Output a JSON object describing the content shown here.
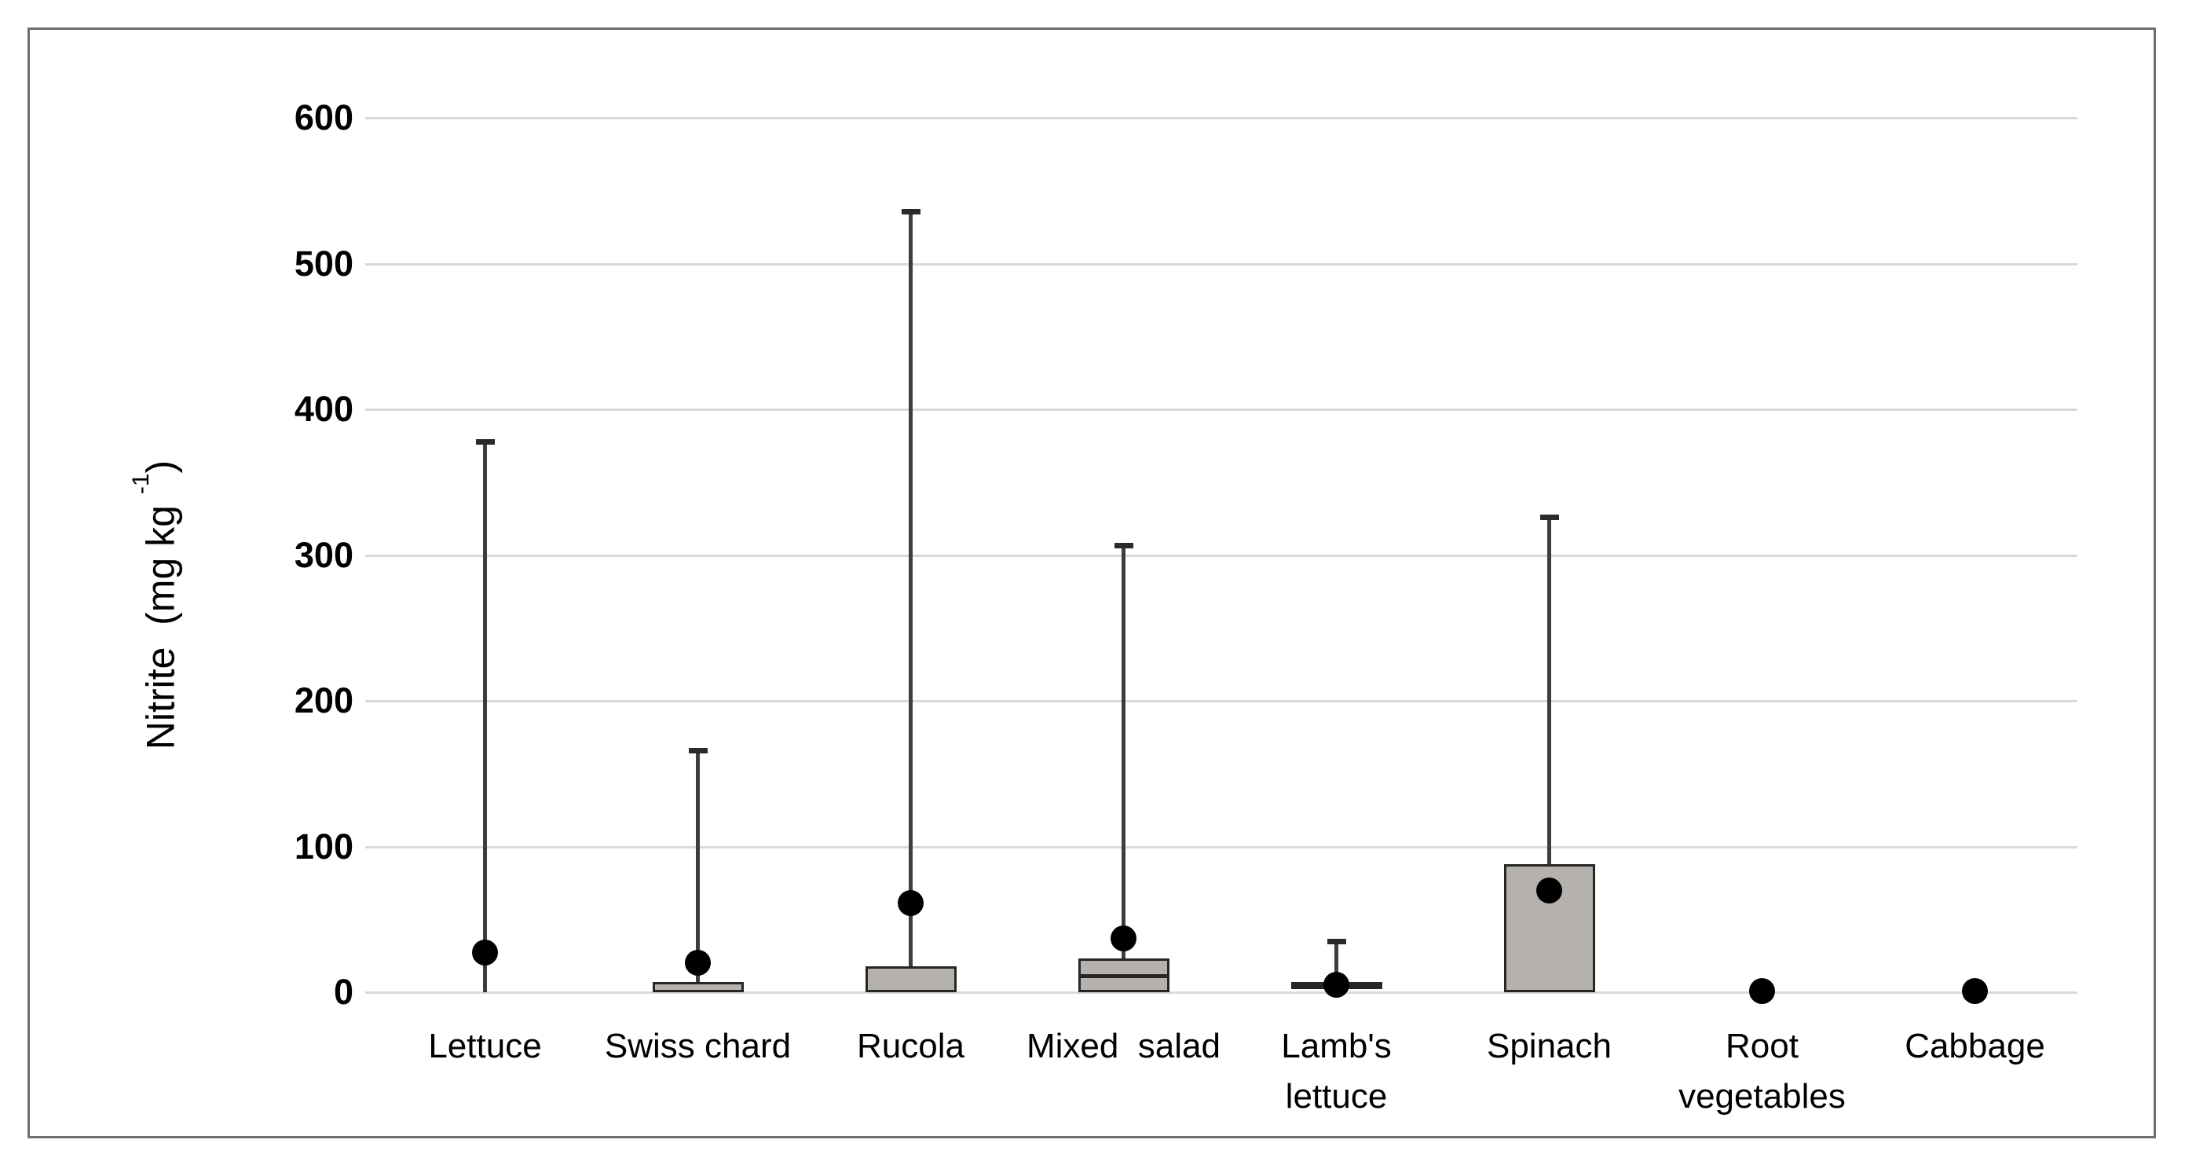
{
  "figure": {
    "y_axis_title": {
      "prefix": "Nitrite  (mg kg ",
      "superscript": "-1",
      "suffix": ")"
    }
  },
  "chart_data": {
    "type": "box",
    "title": "",
    "xlabel": "",
    "ylabel": "Nitrite (mg kg -1)",
    "legend": "none",
    "grid": "horizontal",
    "y_axis": {
      "min": 0,
      "max": 600,
      "tick_interval": 100,
      "tick_labels": [
        "0",
        "100",
        "200",
        "300",
        "400",
        "500",
        "600"
      ]
    },
    "categories": [
      [
        "Lettuce"
      ],
      [
        "Swiss chard"
      ],
      [
        "Rucola"
      ],
      [
        "Mixed  salad"
      ],
      [
        "Lamb's",
        "lettuce"
      ],
      [
        "Spinach"
      ],
      [
        "Root",
        "vegetables"
      ],
      [
        "Cabbage"
      ]
    ],
    "series": [
      {
        "category": "Lettuce",
        "box_low": 0,
        "box_high": 0,
        "median": null,
        "whisker_max": 378,
        "mean": 27,
        "has_box": false
      },
      {
        "category": "Swiss chard",
        "box_low": 0,
        "box_high": 7,
        "median": null,
        "whisker_max": 166,
        "mean": 20,
        "has_box": true
      },
      {
        "category": "Rucola",
        "box_low": 0,
        "box_high": 18,
        "median": null,
        "whisker_max": 536,
        "mean": 61,
        "has_box": true
      },
      {
        "category": "Mixed  salad",
        "box_low": 0,
        "box_high": 23,
        "median": 11,
        "whisker_max": 307,
        "mean": 37,
        "has_box": true
      },
      {
        "category": "Lamb's lettuce",
        "box_low": 2,
        "box_high": 7,
        "median": 5,
        "whisker_max": 35,
        "mean": 5,
        "has_box": true
      },
      {
        "category": "Spinach",
        "box_low": 0,
        "box_high": 88,
        "median": null,
        "whisker_max": 326,
        "mean": 70,
        "has_box": true
      },
      {
        "category": "Root vegetables",
        "box_low": null,
        "box_high": null,
        "median": null,
        "whisker_max": null,
        "mean": 1,
        "has_box": false
      },
      {
        "category": "Cabbage",
        "box_low": null,
        "box_high": null,
        "median": null,
        "whisker_max": null,
        "mean": 1,
        "has_box": false
      }
    ],
    "colors": {
      "box_fill": "#b5b1ac",
      "box_border": "#262626",
      "whisker": "#3d3d3d",
      "mean_dot": "#000000",
      "gridline": "#d9d9d9",
      "frame_border": "#6e6e6e"
    }
  }
}
